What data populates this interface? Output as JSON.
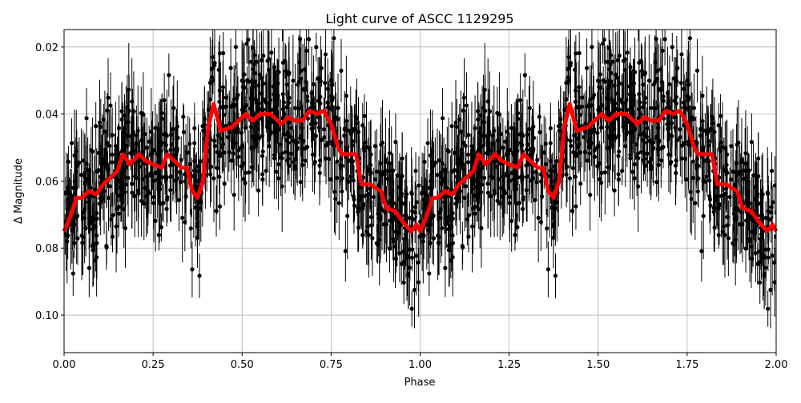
{
  "chart_data": {
    "type": "scatter",
    "title": "Light curve of ASCC 1129295",
    "xlabel": "Phase",
    "ylabel": "Δ Magnitude",
    "xlim": [
      0,
      2
    ],
    "ylim": [
      0.1112,
      0.0148
    ],
    "y_inverted": true,
    "grid": true,
    "xticks": [
      "0.00",
      "0.25",
      "0.50",
      "0.75",
      "1.00",
      "1.25",
      "1.50",
      "1.75",
      "2.00"
    ],
    "xtick_values": [
      0,
      0.25,
      0.5,
      0.75,
      1.0,
      1.25,
      1.5,
      1.75,
      2.0
    ],
    "yticks": [
      "0.02",
      "0.04",
      "0.06",
      "0.08",
      "0.10"
    ],
    "ytick_values": [
      0.02,
      0.04,
      0.06,
      0.08,
      0.1
    ],
    "points_color": "#000000",
    "binned_curve_color": "#ff0000",
    "binned_curve": {
      "phase": [
        0,
        0.02,
        0.035,
        0.05,
        0.07,
        0.09,
        0.11,
        0.13,
        0.15,
        0.165,
        0.185,
        0.21,
        0.23,
        0.25,
        0.275,
        0.29,
        0.31,
        0.33,
        0.345,
        0.36,
        0.375,
        0.39,
        0.405,
        0.42,
        0.44,
        0.47,
        0.49,
        0.51,
        0.53,
        0.55,
        0.58,
        0.61,
        0.63,
        0.65,
        0.67,
        0.69,
        0.71,
        0.73,
        0.75,
        0.77,
        0.78,
        0.8,
        0.82,
        0.835,
        0.86,
        0.875,
        0.89,
        0.905,
        0.93,
        0.95,
        0.975,
        0.99,
        1.0
      ],
      "mag": [
        0.075,
        0.07,
        0.065,
        0.065,
        0.063,
        0.064,
        0.061,
        0.059,
        0.057,
        0.052,
        0.055,
        0.052,
        0.054,
        0.055,
        0.056,
        0.052,
        0.054,
        0.056,
        0.056,
        0.063,
        0.065,
        0.06,
        0.044,
        0.037,
        0.045,
        0.044,
        0.042,
        0.04,
        0.042,
        0.04,
        0.04,
        0.043,
        0.041,
        0.042,
        0.042,
        0.039,
        0.04,
        0.039,
        0.043,
        0.05,
        0.052,
        0.052,
        0.052,
        0.061,
        0.061,
        0.062,
        0.063,
        0.068,
        0.069,
        0.072,
        0.075,
        0.073,
        0.075
      ]
    }
  }
}
